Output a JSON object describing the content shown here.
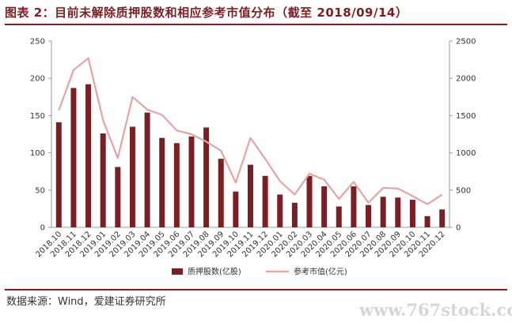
{
  "title": "图表 2：目前未解除质押股数和相应参考市值分布（截至 2018/09/14）",
  "source": "数据来源：Wind，爱建证券研究所",
  "watermark": "www.767stock.com",
  "colors": {
    "bar": "#7b1f24",
    "line": "#e4a4a3",
    "title": "#7b1f24",
    "axis": "#999999"
  },
  "chart_data": {
    "type": "bar",
    "categories": [
      "2018.10",
      "2018.11",
      "2018.12",
      "2019.01",
      "2019.02",
      "2019.03",
      "2019.04",
      "2019.05",
      "2019.06",
      "2019.07",
      "2019.08",
      "2019.09",
      "2019.10",
      "2019.11",
      "2019.12",
      "2020.01",
      "2020.02",
      "2020.03",
      "2020.04",
      "2020.05",
      "2020.06",
      "2020.07",
      "2020.08",
      "2020.09",
      "2020.10",
      "2020.11",
      "2020.12"
    ],
    "series": [
      {
        "name": "质押股数(亿股)",
        "type": "bar",
        "axis": "left",
        "values": [
          141,
          187,
          192,
          126,
          81,
          135,
          154,
          120,
          113,
          122,
          134,
          92,
          48,
          84,
          69,
          44,
          33,
          69,
          55,
          28,
          55,
          30,
          41,
          40,
          37,
          15,
          24
        ]
      },
      {
        "name": "参考市值(亿元)",
        "type": "line",
        "axis": "right",
        "values": [
          1570,
          2110,
          2270,
          1440,
          930,
          1750,
          1580,
          1510,
          1300,
          1250,
          1150,
          1030,
          600,
          1200,
          920,
          620,
          440,
          720,
          640,
          380,
          610,
          330,
          530,
          520,
          420,
          310,
          440
        ]
      }
    ],
    "y_left": {
      "lim": [
        0,
        250
      ],
      "ticks": [
        0,
        50,
        100,
        150,
        200,
        250
      ]
    },
    "y_right": {
      "lim": [
        0,
        2500
      ],
      "ticks": [
        0,
        500,
        1000,
        1500,
        2000,
        2500
      ]
    },
    "legend_position": "bottom-center"
  }
}
